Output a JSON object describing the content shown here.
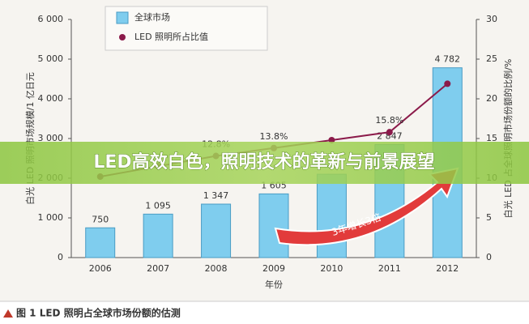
{
  "banner": "LED高效白色，照明技术的革新与前景展望",
  "caption": "图 1 LED 照明占全球市场份额的估测",
  "chart_data": {
    "type": "bar",
    "y_label": "白光 LED 照明市场规模/1 亿日元",
    "y2_label": "白光 LED 占全球照明市场份额的比例/%",
    "x_label": "年份",
    "annotation": "3年增长3倍",
    "categories": [
      "2006",
      "2007",
      "2008",
      "2009",
      "2010",
      "2011",
      "2012"
    ],
    "ylim": [
      0,
      6000
    ],
    "yticks": [
      0,
      {
        "value": 1000,
        "label": "1 000"
      },
      {
        "value": 2000,
        "label": "2 000"
      },
      {
        "value": 3000,
        "label": "3 000"
      },
      {
        "value": 4000,
        "label": "4 000"
      },
      {
        "value": 5000,
        "label": "5 000"
      },
      {
        "value": 6000,
        "label": "6 000"
      }
    ],
    "y2lim": [
      0,
      30
    ],
    "y2ticks": [
      0,
      5,
      10,
      15,
      20,
      25,
      30
    ],
    "legend": "top-left",
    "series": [
      {
        "name": "全球市场",
        "color": "#7fcdee",
        "values": [
          750,
          1095,
          1347,
          1605,
          2100,
          2847,
          4782
        ],
        "value_labels": [
          "750",
          "1 095",
          "1 347",
          "1 605",
          null,
          "2 847",
          "4 782"
        ]
      },
      {
        "name": "LED 照明所占比值",
        "type": "line",
        "axis": "y2",
        "color": "#8b1a4a",
        "values": [
          10.2,
          11.5,
          12.8,
          13.8,
          14.8,
          15.8,
          21.9
        ],
        "value_labels": [
          null,
          null,
          "12.8%",
          "13.8%",
          null,
          "15.8%",
          null
        ]
      }
    ]
  }
}
